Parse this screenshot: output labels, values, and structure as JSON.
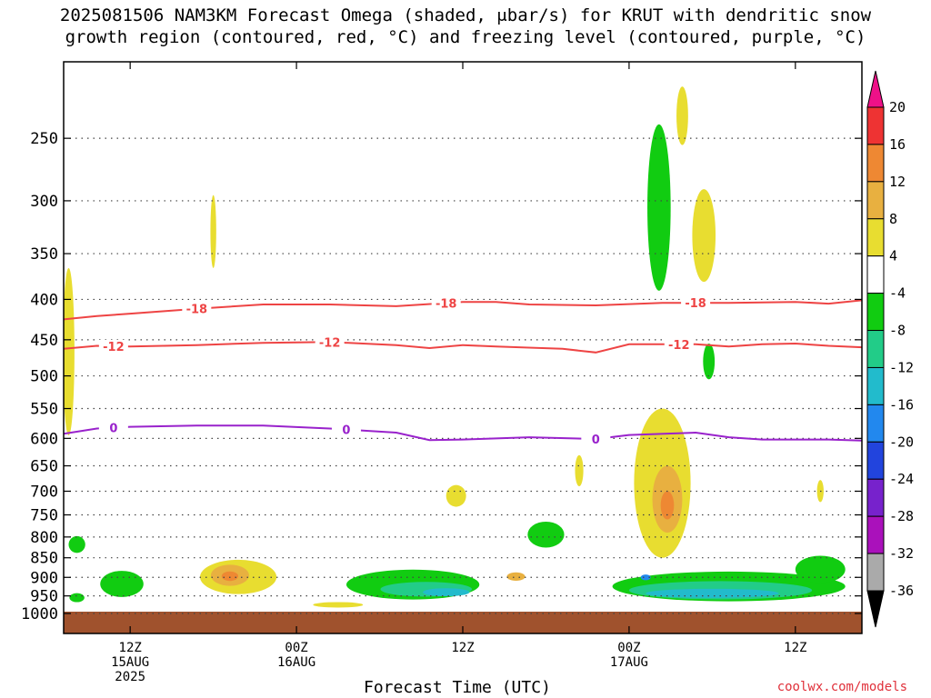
{
  "title_line1": "2025081506 NAM3KM Forecast Omega (shaded, μbar/s) for KRUT with dendritic snow",
  "title_line2": "growth region (contoured, red, °C) and freezing level (contoured, purple, °C)",
  "credit": "coolwx.com/models",
  "colors": {
    "temperature_contour": "#ee4444",
    "freezing_contour": "#9922cc",
    "ground": "#a0522d",
    "grid": "#444444"
  },
  "chart_data": {
    "type": "heatmap",
    "xlabel": "Forecast Time (UTC)",
    "x_range_hours": [
      6,
      54
    ],
    "y_scale": "log-pressure",
    "y_range_mb": [
      200,
      1000
    ],
    "y_ticks": [
      250,
      300,
      350,
      400,
      450,
      500,
      550,
      600,
      650,
      700,
      750,
      800,
      850,
      900,
      950,
      1000
    ],
    "x_ticks": [
      {
        "hour": 10,
        "lines": [
          "12Z",
          "15AUG",
          "2025"
        ]
      },
      {
        "hour": 20,
        "lines": [
          "00Z",
          "16AUG"
        ]
      },
      {
        "hour": 30,
        "lines": [
          "12Z"
        ]
      },
      {
        "hour": 40,
        "lines": [
          "00Z",
          "17AUG"
        ]
      },
      {
        "hour": 50,
        "lines": [
          "12Z"
        ]
      }
    ],
    "grid": "dotted",
    "colorbar": {
      "labels": [
        20,
        16,
        12,
        8,
        4,
        -4,
        -8,
        -12,
        -16,
        -20,
        -24,
        -28,
        -32,
        -36
      ],
      "colors": [
        "#ee3333",
        "#ee8833",
        "#e8b040",
        "#e8dd30",
        "#ffffff",
        "#11cc11",
        "#22cc88",
        "#22bbcc",
        "#2288ee",
        "#2244dd",
        "#7722cc",
        "#aa11bb",
        "#aaaaaa"
      ],
      "top_color": "#ee1188",
      "bottom_color": "#000000"
    },
    "omega_areas": [
      {
        "value": 4,
        "hour": 6.3,
        "pressure": 480,
        "w_hours": 0.7,
        "h_mb": 230
      },
      {
        "value": -6,
        "hour": 6.8,
        "pressure": 818,
        "w_hours": 1.0,
        "h_mb": 40
      },
      {
        "value": -6,
        "hour": 9.5,
        "pressure": 918,
        "w_hours": 2.6,
        "h_mb": 70
      },
      {
        "value": -6,
        "hour": 6.8,
        "pressure": 955,
        "w_hours": 0.9,
        "h_mb": 25
      },
      {
        "value": 4,
        "hour": 16.5,
        "pressure": 900,
        "w_hours": 4.6,
        "h_mb": 90
      },
      {
        "value": 8,
        "hour": 16.0,
        "pressure": 895,
        "w_hours": 2.3,
        "h_mb": 55
      },
      {
        "value": 12,
        "hour": 16.0,
        "pressure": 897,
        "w_hours": 1.0,
        "h_mb": 25
      },
      {
        "value": 4,
        "hour": 15.0,
        "pressure": 330,
        "w_hours": 0.35,
        "h_mb": 70
      },
      {
        "value": -6,
        "hour": 27.0,
        "pressure": 920,
        "w_hours": 8.0,
        "h_mb": 80
      },
      {
        "value": -9,
        "hour": 27.8,
        "pressure": 932,
        "w_hours": 5.5,
        "h_mb": 40
      },
      {
        "value": -12,
        "hour": 29.0,
        "pressure": 940,
        "w_hours": 2.8,
        "h_mb": 22
      },
      {
        "value": 4,
        "hour": 29.6,
        "pressure": 710,
        "w_hours": 1.2,
        "h_mb": 45
      },
      {
        "value": 8,
        "hour": 33.2,
        "pressure": 898,
        "w_hours": 1.1,
        "h_mb": 22
      },
      {
        "value": -6,
        "hour": 35.0,
        "pressure": 795,
        "w_hours": 2.2,
        "h_mb": 60
      },
      {
        "value": 4,
        "hour": 37.0,
        "pressure": 660,
        "w_hours": 0.5,
        "h_mb": 60
      },
      {
        "value": -6,
        "hour": 41.8,
        "pressure": 315,
        "w_hours": 1.4,
        "h_mb": 150
      },
      {
        "value": 4,
        "hour": 43.2,
        "pressure": 235,
        "w_hours": 0.7,
        "h_mb": 40
      },
      {
        "value": 4,
        "hour": 44.5,
        "pressure": 335,
        "w_hours": 1.4,
        "h_mb": 90
      },
      {
        "value": -6,
        "hour": 44.8,
        "pressure": 480,
        "w_hours": 0.7,
        "h_mb": 50
      },
      {
        "value": 4,
        "hour": 42.0,
        "pressure": 700,
        "w_hours": 3.4,
        "h_mb": 300
      },
      {
        "value": 8,
        "hour": 42.3,
        "pressure": 720,
        "w_hours": 1.8,
        "h_mb": 140
      },
      {
        "value": 12,
        "hour": 42.3,
        "pressure": 730,
        "w_hours": 0.8,
        "h_mb": 60
      },
      {
        "value": -6,
        "hour": 46.0,
        "pressure": 925,
        "w_hours": 14.0,
        "h_mb": 80
      },
      {
        "value": -9,
        "hour": 45.5,
        "pressure": 935,
        "w_hours": 11.0,
        "h_mb": 50
      },
      {
        "value": -12,
        "hour": 45.0,
        "pressure": 943,
        "w_hours": 8.0,
        "h_mb": 25
      },
      {
        "value": -16,
        "hour": 41.0,
        "pressure": 900,
        "w_hours": 0.6,
        "h_mb": 15
      },
      {
        "value": -6,
        "hour": 51.5,
        "pressure": 880,
        "w_hours": 3.0,
        "h_mb": 70
      },
      {
        "value": 4,
        "hour": 51.5,
        "pressure": 700,
        "w_hours": 0.4,
        "h_mb": 45
      },
      {
        "value": 4,
        "hour": 22.5,
        "pressure": 975,
        "w_hours": 3.0,
        "h_mb": 12
      }
    ],
    "contours": [
      {
        "label": "-18",
        "color": "#ee4444",
        "points": [
          [
            6,
            424
          ],
          [
            8,
            420
          ],
          [
            10,
            417
          ],
          [
            14,
            411
          ],
          [
            18,
            406
          ],
          [
            22,
            406
          ],
          [
            26,
            408
          ],
          [
            30,
            403
          ],
          [
            32,
            403
          ],
          [
            34,
            406
          ],
          [
            38,
            407
          ],
          [
            42,
            404
          ],
          [
            46,
            404
          ],
          [
            50,
            403
          ],
          [
            52,
            405
          ],
          [
            54,
            401
          ]
        ],
        "label_hours": [
          14,
          29,
          44
        ]
      },
      {
        "label": "-12",
        "color": "#ee4444",
        "points": [
          [
            6,
            462
          ],
          [
            8,
            458
          ],
          [
            10,
            459
          ],
          [
            14,
            457
          ],
          [
            18,
            454
          ],
          [
            22,
            453
          ],
          [
            26,
            457
          ],
          [
            28,
            461
          ],
          [
            30,
            457
          ],
          [
            32,
            459
          ],
          [
            36,
            462
          ],
          [
            38,
            467
          ],
          [
            40,
            456
          ],
          [
            44,
            456
          ],
          [
            46,
            459
          ],
          [
            48,
            456
          ],
          [
            50,
            455
          ],
          [
            52,
            458
          ],
          [
            54,
            460
          ]
        ],
        "label_hours": [
          9,
          22,
          43
        ]
      },
      {
        "label": "0",
        "color": "#9922cc",
        "points": [
          [
            6,
            592
          ],
          [
            8,
            583
          ],
          [
            10,
            580
          ],
          [
            14,
            578
          ],
          [
            18,
            578
          ],
          [
            22,
            583
          ],
          [
            26,
            590
          ],
          [
            28,
            603
          ],
          [
            30,
            602
          ],
          [
            34,
            598
          ],
          [
            38,
            601
          ],
          [
            40,
            594
          ],
          [
            44,
            590
          ],
          [
            46,
            598
          ],
          [
            48,
            602
          ],
          [
            52,
            602
          ],
          [
            54,
            604
          ]
        ],
        "label_hours": [
          9,
          23,
          38
        ]
      }
    ]
  }
}
